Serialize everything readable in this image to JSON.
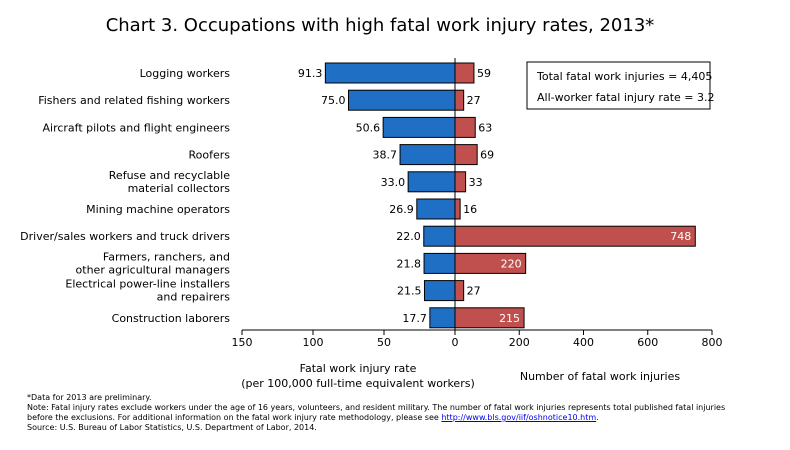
{
  "chart_data": {
    "type": "bar",
    "title": "Chart 3. Occupations with high fatal work injury rates, 2013*",
    "categories": [
      [
        "Logging workers"
      ],
      [
        "Fishers and related fishing workers"
      ],
      [
        "Aircraft pilots and flight engineers"
      ],
      [
        "Roofers"
      ],
      [
        "Refuse and recyclable",
        "material collectors"
      ],
      [
        "Mining machine operators"
      ],
      [
        "Driver/sales workers and truck drivers"
      ],
      [
        "Farmers, ranchers, and",
        "other agricultural managers"
      ],
      [
        "Electrical power-line installers",
        "and repairers"
      ],
      [
        "Construction laborers"
      ]
    ],
    "series": [
      {
        "name": "Fatal work injury rate",
        "values": [
          91.3,
          75.0,
          50.6,
          38.7,
          33.0,
          26.9,
          22.0,
          21.8,
          21.5,
          17.7
        ],
        "labels": [
          "91.3",
          "75.0",
          "50.6",
          "38.7",
          "33.0",
          "26.9",
          "22.0",
          "21.8",
          "21.5",
          "17.7"
        ],
        "color": "#1f6fc5",
        "axis_label": [
          "Fatal work injury rate",
          "(per 100,000 full-time equivalent workers)"
        ],
        "ticks": [
          150,
          100,
          50,
          0
        ],
        "xlim": [
          0,
          150
        ]
      },
      {
        "name": "Number of fatal work injuries",
        "values": [
          59,
          27,
          63,
          69,
          33,
          16,
          748,
          220,
          27,
          215
        ],
        "labels": [
          "59",
          "27",
          "63",
          "69",
          "33",
          "16",
          "748",
          "220",
          "27",
          "215"
        ],
        "color": "#c0504d",
        "axis_label": [
          "Number of fatal work injuries"
        ],
        "ticks": [
          0,
          200,
          400,
          600,
          800
        ],
        "xlim": [
          0,
          800
        ]
      }
    ],
    "legend": [
      "Total fatal work injuries = 4,405",
      "All-worker fatal injury rate = 3.2"
    ],
    "legend_position": "top-right",
    "grid": false
  },
  "notes": {
    "preliminary": "*Data for 2013 are preliminary.",
    "note_line1": "Note: Fatal injury rates exclude workers under the age of 16 years, volunteers, and resident military. The number of fatal work injuries represents total published fatal injuries",
    "note_line2_prefix": "before the exclusions. For additional information on the fatal work injury rate methodology, please see ",
    "note_link": "http://www.bls.gov/iif/oshnotice10.htm",
    "note_line2_suffix": ".",
    "source": "Source: U.S. Bureau of Labor Statistics, U.S. Department of Labor, 2014."
  }
}
